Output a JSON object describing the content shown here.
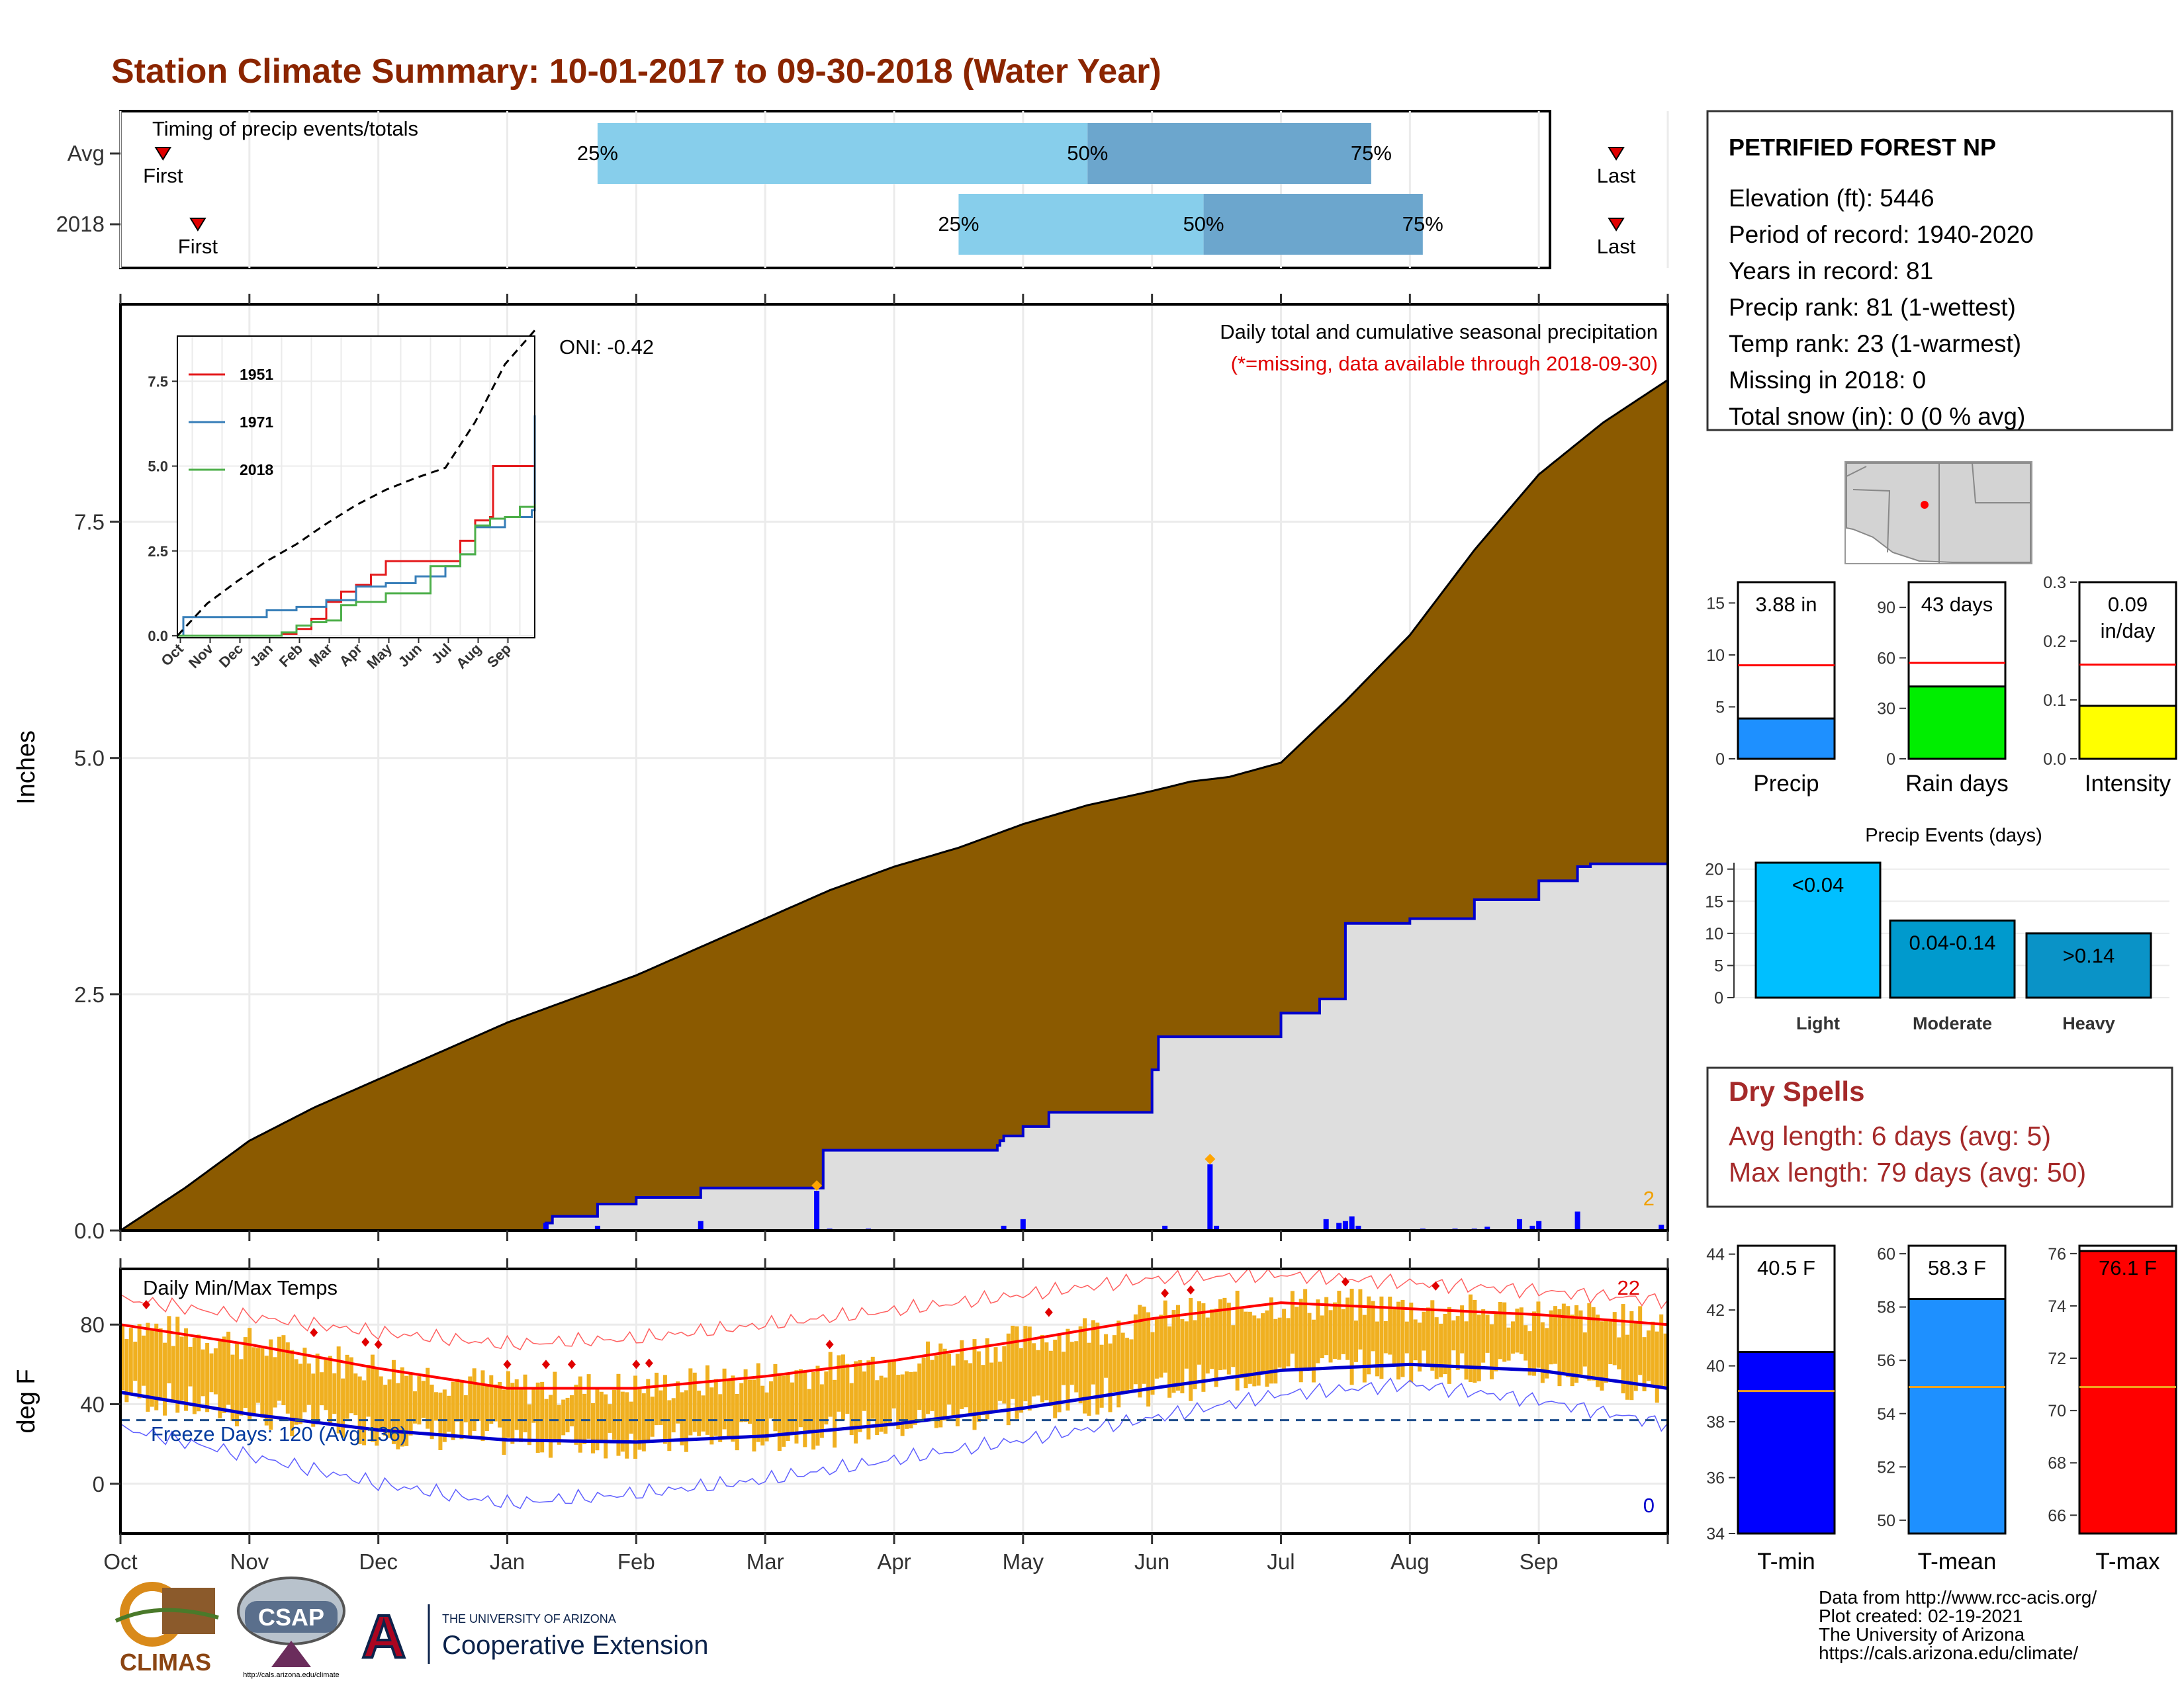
{
  "title": "Station Climate Summary: 10-01-2017 to 09-30-2018 (Water Year)",
  "timing_panel": {
    "label": "Timing of precip events/totals",
    "rows": [
      {
        "name": "Avg",
        "first_label": "First",
        "last_label": "Last",
        "first_month": 0.33,
        "last_month": 11.6,
        "q25": 3.7,
        "q50": 7.5,
        "q75": 9.7,
        "p25": "25%",
        "p50": "50%",
        "p75": "75%"
      },
      {
        "name": "2018",
        "first_label": "First",
        "last_label": "Last",
        "first_month": 0.6,
        "last_month": 11.6,
        "q25": 6.5,
        "q50": 8.4,
        "q75": 10.1,
        "p25": "25%",
        "p50": "50%",
        "p75": "75%"
      }
    ]
  },
  "station": {
    "name": "PETRIFIED FOREST NP",
    "lines": [
      "Elevation (ft): 5446",
      "Period of record: 1940-2020",
      "Years in record: 81",
      "Precip rank: 81 (1-wettest)",
      "Temp rank: 23 (1-warmest)",
      "Missing in 2018: 0",
      "Total snow (in): 0 (0 % avg)"
    ]
  },
  "precip_panel": {
    "ylabel": "Inches",
    "note1": "Daily total and cumulative seasonal precipitation",
    "note2": "(*=missing, data available through 2018-09-30)",
    "oni": "ONI: -0.42",
    "extreme_count": "2",
    "yticks": [
      "0.0",
      "2.5",
      "5.0",
      "7.5"
    ]
  },
  "chart_data": [
    {
      "type": "area",
      "name": "cumulative-precip",
      "ylim": [
        0,
        9.8
      ],
      "x_unit": "months since Oct 1",
      "avg_cumulative": {
        "x": [
          0,
          0.5,
          1,
          1.5,
          2,
          2.5,
          3,
          3.5,
          4,
          4.5,
          5,
          5.5,
          6,
          6.5,
          7,
          7.5,
          8,
          8.3,
          8.6,
          9,
          9.5,
          10,
          10.5,
          11,
          11.5,
          12
        ],
        "y": [
          0,
          0.45,
          0.95,
          1.3,
          1.6,
          1.9,
          2.2,
          2.45,
          2.7,
          3.0,
          3.3,
          3.6,
          3.85,
          4.05,
          4.3,
          4.5,
          4.65,
          4.75,
          4.8,
          4.95,
          5.6,
          6.3,
          7.2,
          8.0,
          8.55,
          9.0
        ]
      },
      "cumulative_2018": {
        "x": [
          0,
          3.3,
          3.35,
          3.7,
          4.0,
          4.5,
          5.4,
          5.45,
          6.8,
          6.82,
          6.85,
          7.0,
          7.2,
          7.5,
          7.8,
          8.0,
          8.05,
          8.5,
          8.8,
          9.0,
          9.3,
          9.5,
          10.0,
          10.5,
          11.0,
          11.3,
          11.4,
          12
        ],
        "y": [
          0,
          0.08,
          0.15,
          0.28,
          0.35,
          0.45,
          0.45,
          0.85,
          0.9,
          0.95,
          1.0,
          1.1,
          1.25,
          1.25,
          1.25,
          1.7,
          2.05,
          2.05,
          2.05,
          2.3,
          2.45,
          3.25,
          3.3,
          3.5,
          3.7,
          3.85,
          3.88,
          3.88
        ]
      },
      "daily_bars": [
        {
          "x": 3.3,
          "y": 0.08
        },
        {
          "x": 3.7,
          "y": 0.05
        },
        {
          "x": 4.5,
          "y": 0.1
        },
        {
          "x": 5.4,
          "y": 0.42
        },
        {
          "x": 5.5,
          "y": 0.02
        },
        {
          "x": 5.8,
          "y": 0.02
        },
        {
          "x": 6.85,
          "y": 0.05
        },
        {
          "x": 7.0,
          "y": 0.12
        },
        {
          "x": 8.1,
          "y": 0.05
        },
        {
          "x": 8.45,
          "y": 0.7
        },
        {
          "x": 8.5,
          "y": 0.05
        },
        {
          "x": 9.35,
          "y": 0.12
        },
        {
          "x": 9.45,
          "y": 0.08
        },
        {
          "x": 9.5,
          "y": 0.1
        },
        {
          "x": 9.55,
          "y": 0.15
        },
        {
          "x": 9.6,
          "y": 0.05
        },
        {
          "x": 10.1,
          "y": 0.02
        },
        {
          "x": 10.35,
          "y": 0.02
        },
        {
          "x": 10.5,
          "y": 0.02
        },
        {
          "x": 10.6,
          "y": 0.04
        },
        {
          "x": 10.85,
          "y": 0.12
        },
        {
          "x": 10.95,
          "y": 0.05
        },
        {
          "x": 11.0,
          "y": 0.1
        },
        {
          "x": 11.3,
          "y": 0.2
        },
        {
          "x": 11.95,
          "y": 0.06
        }
      ],
      "extreme_markers": [
        {
          "x": 5.4,
          "y": 0.42
        },
        {
          "x": 8.45,
          "y": 0.7
        }
      ]
    },
    {
      "type": "line",
      "name": "inset-cumulative-years",
      "ylim": [
        0,
        8.5
      ],
      "yticks": [
        "0.0",
        "2.5",
        "5.0",
        "7.5"
      ],
      "months": [
        "Oct",
        "Nov",
        "Dec",
        "Jan",
        "Feb",
        "Mar",
        "Apr",
        "May",
        "Jun",
        "Jul",
        "Aug",
        "Sep"
      ],
      "series": [
        {
          "name": "1951",
          "color": "#e41a1c",
          "x": [
            0,
            3,
            3.5,
            4,
            4.5,
            5,
            5.5,
            6,
            6.5,
            7,
            8,
            9,
            9.5,
            10,
            10.5,
            10.6,
            11,
            11.8,
            12
          ],
          "y": [
            0,
            0,
            0.05,
            0.2,
            0.5,
            1.0,
            1.3,
            1.5,
            1.8,
            2.2,
            2.2,
            2.2,
            2.8,
            3.4,
            3.5,
            5.0,
            5.0,
            5.0,
            5.0
          ]
        },
        {
          "name": "1971",
          "color": "#377eb8",
          "x": [
            0,
            0.2,
            2,
            3,
            4,
            5,
            6,
            7,
            8,
            9,
            9.5,
            10,
            11,
            11.9,
            12
          ],
          "y": [
            0,
            0.55,
            0.55,
            0.75,
            0.85,
            1.05,
            1.45,
            1.55,
            1.75,
            2.05,
            2.4,
            3.2,
            3.5,
            3.7,
            6.5
          ]
        },
        {
          "name": "2018",
          "color": "#4daf4a",
          "x": [
            0,
            3,
            3.5,
            4,
            4.5,
            5,
            5.5,
            6,
            7,
            8,
            8.5,
            9,
            9.5,
            10,
            10.5,
            11,
            11.5,
            12
          ],
          "y": [
            0,
            0,
            0.1,
            0.3,
            0.4,
            0.45,
            0.9,
            1.0,
            1.25,
            1.25,
            2.05,
            2.05,
            2.4,
            3.25,
            3.45,
            3.5,
            3.8,
            3.88
          ]
        },
        {
          "name": "avg",
          "color": "#000000",
          "dashed": true,
          "x": [
            0,
            1,
            2,
            3,
            4,
            5,
            6,
            7,
            8,
            9,
            10,
            11,
            12
          ],
          "y": [
            0,
            0.95,
            1.6,
            2.2,
            2.7,
            3.3,
            3.85,
            4.3,
            4.65,
            4.95,
            6.3,
            8.0,
            9.0
          ]
        }
      ]
    },
    {
      "type": "bar",
      "name": "precip-comparison",
      "bars": [
        {
          "label": "Precip",
          "value_label": "3.88 in",
          "value": 3.88,
          "avg": 9.0,
          "ylim": [
            0,
            17
          ],
          "yticks": [
            "0",
            "5",
            "10",
            "15"
          ],
          "tick_values": [
            0,
            5,
            10,
            15
          ],
          "color": "#1e90ff"
        },
        {
          "label": "Rain days",
          "value_label": "43 days",
          "value": 43,
          "avg": 57,
          "ylim": [
            0,
            105
          ],
          "yticks": [
            "0",
            "30",
            "60",
            "90"
          ],
          "tick_values": [
            0,
            30,
            60,
            90
          ],
          "color": "#00ee00"
        },
        {
          "label": "Intensity",
          "value_label_1": "0.09",
          "value_label_2": "in/day",
          "value": 0.09,
          "avg": 0.16,
          "ylim": [
            0,
            0.3
          ],
          "yticks": [
            "0.0",
            "0.1",
            "0.2",
            "0.3"
          ],
          "tick_values": [
            0,
            0.1,
            0.2,
            0.3
          ],
          "color": "#ffff00"
        }
      ]
    },
    {
      "type": "bar",
      "name": "precip-events",
      "title": "Precip Events (days)",
      "categories": [
        "Light",
        "Moderate",
        "Heavy"
      ],
      "bar_labels": [
        "<0.04",
        "0.04-0.14",
        ">0.14"
      ],
      "values": [
        21,
        12,
        10
      ],
      "ylim": [
        0,
        21
      ],
      "yticks": [
        "0",
        "5",
        "10",
        "15",
        "20"
      ],
      "colors": [
        "#00bfff",
        "#009acd",
        "#0a93c7"
      ]
    },
    {
      "type": "line",
      "name": "daily-temps",
      "title": "Daily Min/Max Temps",
      "ylabel": "deg F",
      "ylim": [
        -25,
        108
      ],
      "yticks": [
        "0",
        "40",
        "80"
      ],
      "freeze_label": "Freeze Days: 120 (Avg:136)",
      "freeze_line": 32,
      "max_extreme_count": "22",
      "min_extreme_count": "0",
      "months": [
        "Oct",
        "Nov",
        "Dec",
        "Jan",
        "Feb",
        "Mar",
        "Apr",
        "May",
        "Jun",
        "Jul",
        "Aug",
        "Sep"
      ],
      "avg_max": {
        "x": [
          0,
          1,
          2,
          3,
          4,
          5,
          6,
          7,
          8,
          9,
          10,
          11,
          12
        ],
        "y": [
          80,
          70,
          58,
          48,
          48,
          54,
          62,
          72,
          83,
          91,
          88,
          85,
          80
        ]
      },
      "avg_min": {
        "x": [
          0,
          1,
          2,
          3,
          4,
          5,
          6,
          7,
          8,
          9,
          10,
          11,
          12
        ],
        "y": [
          46,
          35,
          27,
          22,
          21,
          24,
          30,
          38,
          48,
          57,
          60,
          57,
          48
        ]
      },
      "record_max": {
        "x": [
          0,
          1,
          2,
          3,
          4,
          5,
          6,
          7,
          8,
          9,
          10,
          11,
          12
        ],
        "y": [
          93,
          84,
          76,
          70,
          73,
          80,
          87,
          95,
          103,
          105,
          101,
          97,
          92
        ]
      },
      "record_min": {
        "x": [
          0,
          1,
          2,
          3,
          4,
          5,
          6,
          7,
          8,
          9,
          10,
          11,
          12
        ],
        "y": [
          28,
          14,
          0,
          -10,
          -5,
          2,
          12,
          22,
          33,
          45,
          50,
          42,
          30
        ]
      }
    },
    {
      "type": "bar",
      "name": "temp-comparison",
      "bars": [
        {
          "label": "T-min",
          "value_label": "40.5 F",
          "value": 40.5,
          "avg": 39.1,
          "ylim": [
            34,
            44.3
          ],
          "yticks": [
            "34",
            "36",
            "38",
            "40",
            "42",
            "44"
          ],
          "tick_values": [
            34,
            36,
            38,
            40,
            42,
            44
          ],
          "color": "#0000ff"
        },
        {
          "label": "T-mean",
          "value_label": "58.3 F",
          "value": 58.3,
          "avg": 55.0,
          "ylim": [
            49.5,
            60.3
          ],
          "yticks": [
            "50",
            "52",
            "54",
            "56",
            "58",
            "60"
          ],
          "tick_values": [
            50,
            52,
            54,
            56,
            58,
            60
          ],
          "color": "#1e90ff"
        },
        {
          "label": "T-max",
          "value_label": "76.1 F",
          "value": 76.1,
          "avg": 70.9,
          "ylim": [
            65.3,
            76.3
          ],
          "yticks": [
            "66",
            "68",
            "70",
            "72",
            "74",
            "76"
          ],
          "tick_values": [
            66,
            68,
            70,
            72,
            74,
            76
          ],
          "color": "#ff0000"
        }
      ]
    }
  ],
  "dry_spells": {
    "title": "Dry Spells",
    "avg_length": "Avg length: 6 days (avg: 5)",
    "max_length": "Max length: 79 days (avg: 50)"
  },
  "credits": [
    "Data from http://www.rcc-acis.org/",
    "Plot created: 02-19-2021",
    "The University of Arizona",
    "https://cals.arizona.edu/climate/"
  ],
  "logos": {
    "climas": "CLIMAS",
    "csap": "CSAP",
    "csap_url": "http://cals.arizona.edu/climate",
    "ua_small": "THE UNIVERSITY OF ARIZONA",
    "ua_big": "Cooperative Extension"
  },
  "colors": {
    "title": "#8b2500",
    "avg_fill": "#8b5a00",
    "obs_fill": "#dedede",
    "obs_line": "#0000cd",
    "bar_q1": "#87ceeb",
    "bar_q2": "#6ca6cd",
    "temp_bar": "#f0b020",
    "dry_red": "#a52a2a"
  }
}
